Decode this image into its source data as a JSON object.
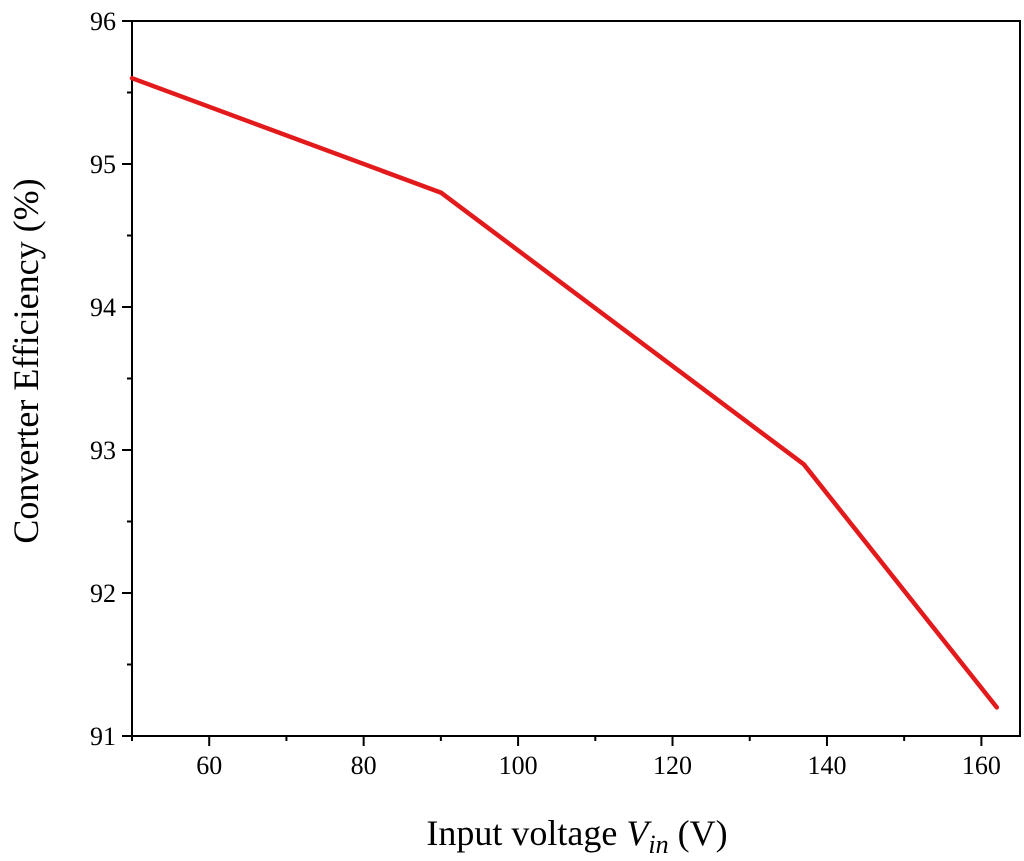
{
  "chart_data": {
    "type": "line",
    "title": "",
    "xlabel": {
      "prefix": "Input voltage ",
      "var": "V",
      "sub": "in",
      "suffix": " (V)"
    },
    "ylabel": "Converter Efficiency (%)",
    "xlim": [
      50,
      165
    ],
    "ylim": [
      91,
      96
    ],
    "xticks": [
      60,
      80,
      100,
      120,
      140,
      160
    ],
    "xminor": [
      50,
      70,
      90,
      110,
      130,
      150
    ],
    "yticks": [
      91,
      92,
      93,
      94,
      95,
      96
    ],
    "yminor": [
      91.5,
      92.5,
      93.5,
      94.5,
      95.5
    ],
    "grid": false,
    "series": [
      {
        "color": "#e31a1c",
        "x": [
          50,
          90,
          137,
          162
        ],
        "y": [
          95.6,
          94.8,
          92.9,
          91.2
        ]
      }
    ]
  }
}
